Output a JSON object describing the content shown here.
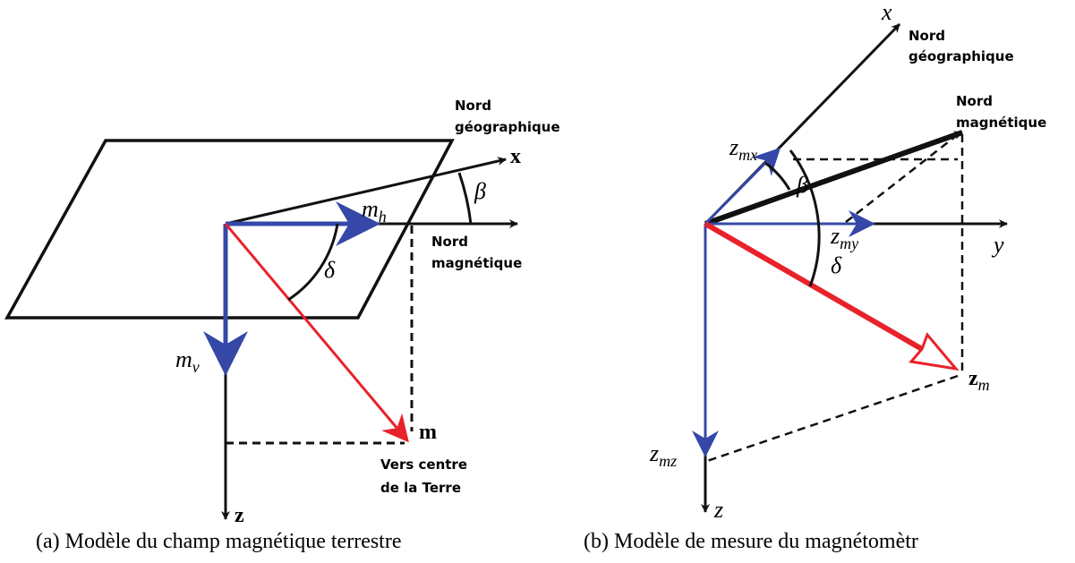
{
  "left": {
    "north_geo": [
      "Nord",
      "géographique"
    ],
    "x": "x",
    "beta": "β",
    "mh": {
      "base": "m",
      "sub": "h"
    },
    "north_mag": [
      "Nord",
      "magnétique"
    ],
    "delta": "δ",
    "mv": {
      "base": "m",
      "sub": "v"
    },
    "m": "m",
    "earth_center": [
      "Vers centre",
      "de la Terre"
    ],
    "z": "z",
    "caption": "(a) Modèle du champ magnétique terrestre"
  },
  "right": {
    "x": "x",
    "north_geo": [
      "Nord",
      "géographique"
    ],
    "north_mag": [
      "Nord",
      "magnétique"
    ],
    "zmx": {
      "base": "z",
      "sub": "mx"
    },
    "beta": "β",
    "zmy": {
      "base": "z",
      "sub": "my"
    },
    "y": "y",
    "delta": "δ",
    "zm": {
      "base": "z",
      "sub": "m"
    },
    "zmz": {
      "base": "z",
      "sub": "mz"
    },
    "z": "z",
    "caption": "(b) Modèle de mesure du magnétomètr"
  }
}
